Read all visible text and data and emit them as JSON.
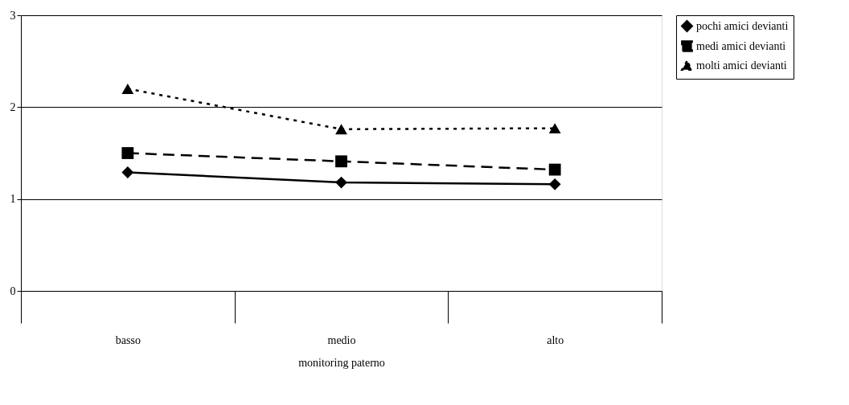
{
  "chart_data": {
    "type": "line",
    "xlabel": "monitoring paterno",
    "categories": [
      "basso",
      "medio",
      "alto"
    ],
    "ylim": [
      0,
      3
    ],
    "yticks": [
      0,
      1,
      2,
      3
    ],
    "grid": "y",
    "legend": "right",
    "series": [
      {
        "name": "pochi amici devianti",
        "color": "#000000",
        "marker": "diamond",
        "line_style": "solid",
        "values": [
          1.29,
          1.18,
          1.16
        ]
      },
      {
        "name": "medi amici devianti",
        "color": "#000000",
        "marker": "square",
        "line_style": "dashed",
        "values": [
          1.5,
          1.41,
          1.32
        ]
      },
      {
        "name": "molti amici devianti",
        "color": "#000000",
        "marker": "triangle",
        "line_style": "dotted",
        "values": [
          2.2,
          1.76,
          1.77
        ]
      }
    ]
  }
}
